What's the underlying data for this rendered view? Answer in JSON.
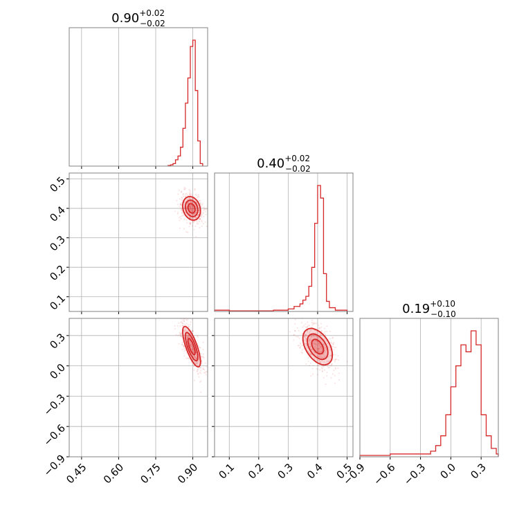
{
  "colors": {
    "series": "#d62728",
    "grid": "#b0b0b0",
    "frame": "#808080"
  },
  "chart_data": {
    "type": "corner",
    "parameters": [
      {
        "title": {
          "median": "0.90",
          "plus": "+0.02",
          "minus": "−0.02"
        },
        "range": [
          0.4,
          0.96
        ],
        "ticks": [
          0.45,
          0.6,
          0.75,
          0.9
        ],
        "tick_labels": [
          "0.45",
          "0.60",
          "0.75",
          "0.90"
        ],
        "hist": {
          "edges": [
            0.8,
            0.81,
            0.82,
            0.83,
            0.84,
            0.85,
            0.86,
            0.87,
            0.88,
            0.89,
            0.9,
            0.91,
            0.92,
            0.93,
            0.94
          ],
          "counts": [
            0.005,
            0.01,
            0.02,
            0.05,
            0.08,
            0.15,
            0.3,
            0.5,
            0.7,
            0.95,
            1.0,
            0.6,
            0.2,
            0.02
          ]
        }
      },
      {
        "title": {
          "median": "0.40",
          "plus": "+0.02",
          "minus": "−0.02"
        },
        "range": [
          0.05,
          0.52
        ],
        "ticks": [
          0.1,
          0.2,
          0.3,
          0.4,
          0.5
        ],
        "tick_labels": [
          "0.1",
          "0.2",
          "0.3",
          "0.4",
          "0.5"
        ],
        "hist": {
          "edges": [
            0.05,
            0.1,
            0.15,
            0.2,
            0.25,
            0.3,
            0.32,
            0.34,
            0.35,
            0.36,
            0.37,
            0.38,
            0.39,
            0.4,
            0.41,
            0.42,
            0.43,
            0.44,
            0.46,
            0.5
          ],
          "counts": [
            0.01,
            0.005,
            0.005,
            0.005,
            0.01,
            0.02,
            0.04,
            0.06,
            0.09,
            0.12,
            0.2,
            0.35,
            0.7,
            1.0,
            0.9,
            0.3,
            0.08,
            0.03,
            0.01
          ]
        }
      },
      {
        "title": {
          "median": "0.19",
          "plus": "+0.10",
          "minus": "−0.10"
        },
        "range": [
          -0.9,
          0.47
        ],
        "ticks": [
          -0.9,
          -0.6,
          -0.3,
          0.0,
          0.3
        ],
        "tick_labels": [
          "−0.9",
          "−0.6",
          "−0.3",
          "0.0",
          "0.3"
        ],
        "hist": {
          "edges": [
            -0.9,
            -0.7,
            -0.6,
            -0.5,
            -0.4,
            -0.3,
            -0.2,
            -0.15,
            -0.1,
            -0.05,
            0.0,
            0.05,
            0.1,
            0.15,
            0.2,
            0.25,
            0.3,
            0.35,
            0.4,
            0.45,
            0.47
          ],
          "counts": [
            0.01,
            0.01,
            0.02,
            0.02,
            0.02,
            0.02,
            0.04,
            0.08,
            0.15,
            0.3,
            0.5,
            0.65,
            0.8,
            0.75,
            0.9,
            0.8,
            0.3,
            0.15,
            0.06,
            0.02
          ]
        }
      }
    ],
    "panels_2d": [
      {
        "x_param": 0,
        "y_param": 1,
        "center": [
          0.895,
          0.4
        ],
        "sigma": [
          0.018,
          0.02
        ],
        "rho": -0.2
      },
      {
        "x_param": 0,
        "y_param": 2,
        "center": [
          0.895,
          0.19
        ],
        "sigma": [
          0.018,
          0.1
        ],
        "rho": -0.75
      },
      {
        "x_param": 1,
        "y_param": 2,
        "center": [
          0.4,
          0.19
        ],
        "sigma": [
          0.025,
          0.09
        ],
        "rho": -0.45
      }
    ],
    "grid": true
  }
}
